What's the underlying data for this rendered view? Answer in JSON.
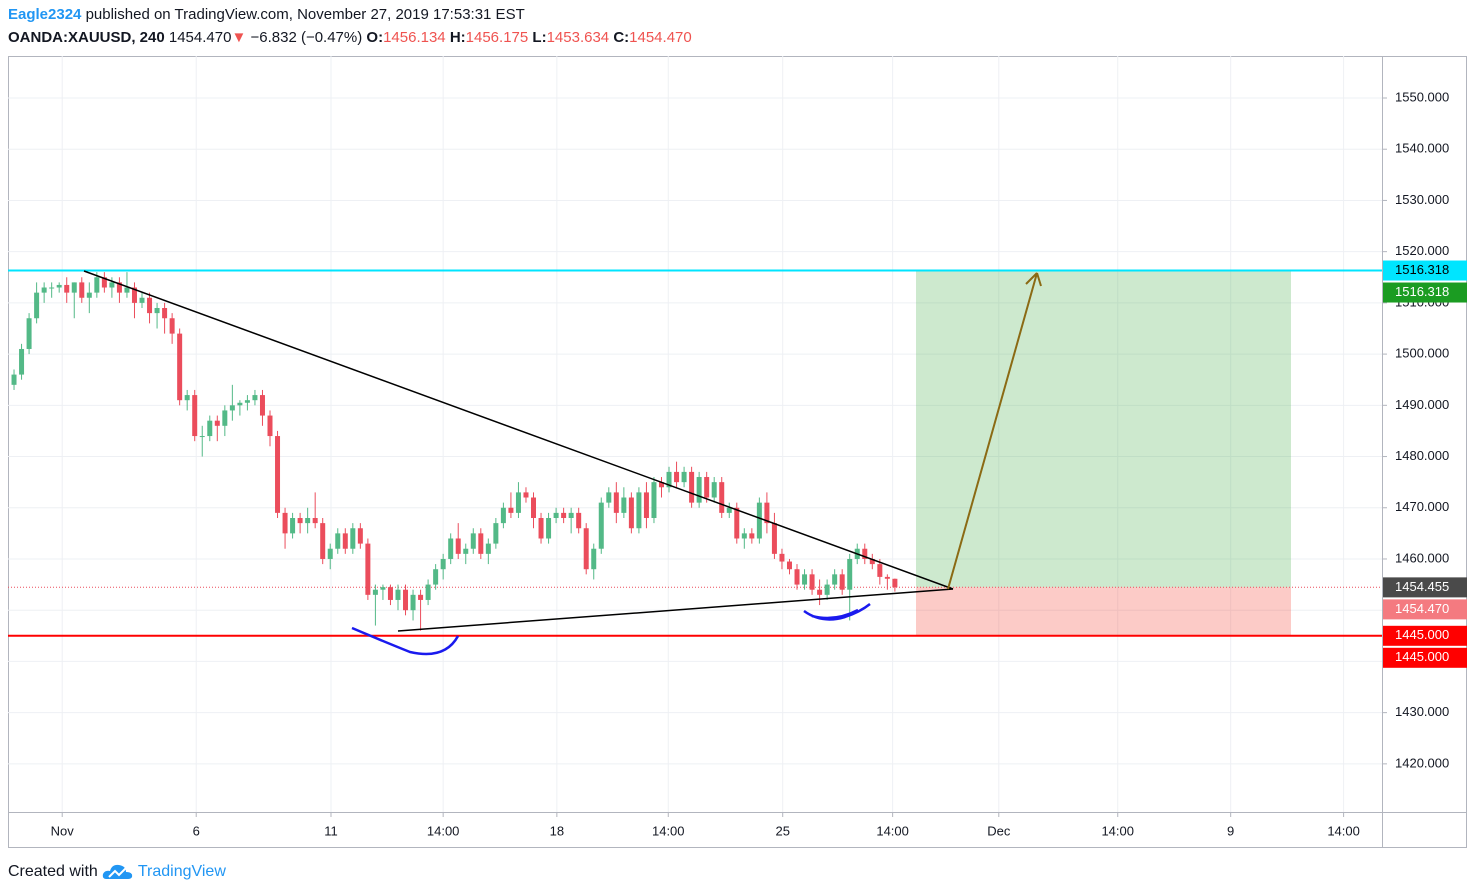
{
  "header": {
    "author": "Eagle2324",
    "published": "published on TradingView.com, November 27, 2019 17:53:31 EST",
    "symbol": "OANDA:XAUUSD, 240",
    "last": "1454.470",
    "arrow": "▼",
    "change": "−6.832 (−0.47%)",
    "o_label": "O:",
    "o": "1456.134",
    "h_label": "H:",
    "h": "1456.175",
    "l_label": "L:",
    "l": "1453.634",
    "c_label": "C:",
    "c": "1454.470"
  },
  "footer": {
    "text": "Created with",
    "brand": "TradingView"
  },
  "chart_data": {
    "type": "candlestick",
    "up_color": "#53b987",
    "down_color": "#eb4d5c",
    "grid": true,
    "xlim": [
      -0.8,
      181.7
    ],
    "xticks": [
      {
        "value": 6.4,
        "label": "Nov"
      },
      {
        "value": 24.2,
        "label": "6"
      },
      {
        "value": 42.1,
        "label": "11"
      },
      {
        "value": 57,
        "label": "14:00"
      },
      {
        "value": 72.1,
        "label": "18"
      },
      {
        "value": 86.9,
        "label": "14:00"
      },
      {
        "value": 102.1,
        "label": "25"
      },
      {
        "value": 116.7,
        "label": "14:00"
      },
      {
        "value": 130.8,
        "label": "Dec"
      },
      {
        "value": 146.6,
        "label": "14:00"
      },
      {
        "value": 161.6,
        "label": "9"
      },
      {
        "value": 176.6,
        "label": "14:00"
      }
    ],
    "ylim": [
      1410.6,
      1558.2
    ],
    "yticks": [
      {
        "value": 1420,
        "label": "1420.000"
      },
      {
        "value": 1430,
        "label": "1430.000"
      },
      {
        "value": 1440,
        "label": "1440.000"
      },
      {
        "value": 1450,
        "label": "1450.000"
      },
      {
        "value": 1460,
        "label": "1460.000"
      },
      {
        "value": 1470,
        "label": "1470.000"
      },
      {
        "value": 1480,
        "label": "1480.000"
      },
      {
        "value": 1490,
        "label": "1490.000"
      },
      {
        "value": 1500,
        "label": "1500.000"
      },
      {
        "value": 1510,
        "label": "1510.000"
      },
      {
        "value": 1520,
        "label": "1520.000"
      },
      {
        "value": 1530,
        "label": "1530.000"
      },
      {
        "value": 1540,
        "label": "1540.000"
      },
      {
        "value": 1550,
        "label": "1550.000"
      }
    ],
    "ohlc": [
      [
        1494,
        1497,
        1493,
        1496
      ],
      [
        1496,
        1502,
        1495,
        1501
      ],
      [
        1501,
        1508,
        1500,
        1507
      ],
      [
        1507,
        1514,
        1506,
        1512
      ],
      [
        1512,
        1514,
        1510,
        1513
      ],
      [
        1513,
        1514,
        1511,
        1513
      ],
      [
        1513,
        1514,
        1512,
        1513.5
      ],
      [
        1513.5,
        1515,
        1510,
        1512
      ],
      [
        1512,
        1514,
        1507,
        1514
      ],
      [
        1514,
        1515,
        1510,
        1511
      ],
      [
        1511,
        1514,
        1508,
        1512
      ],
      [
        1512,
        1516,
        1511,
        1515
      ],
      [
        1515,
        1516,
        1512,
        1513
      ],
      [
        1513,
        1515,
        1511,
        1514
      ],
      [
        1514,
        1515,
        1510,
        1512
      ],
      [
        1512,
        1516,
        1511,
        1513
      ],
      [
        1513,
        1514,
        1507,
        1510
      ],
      [
        1510,
        1512,
        1509,
        1511
      ],
      [
        1511,
        1512,
        1506,
        1508
      ],
      [
        1508,
        1510,
        1505,
        1509
      ],
      [
        1509,
        1510,
        1504,
        1507
      ],
      [
        1507,
        1508,
        1502,
        1504
      ],
      [
        1504,
        1505,
        1490,
        1491
      ],
      [
        1491,
        1493,
        1489,
        1492
      ],
      [
        1492,
        1493,
        1483,
        1484
      ],
      [
        1484,
        1486,
        1480,
        1484
      ],
      [
        1484,
        1488,
        1483,
        1487
      ],
      [
        1487,
        1488,
        1483,
        1486
      ],
      [
        1486,
        1490,
        1484,
        1489
      ],
      [
        1489,
        1494,
        1487,
        1490
      ],
      [
        1490,
        1491,
        1488,
        1490.5
      ],
      [
        1490.5,
        1492,
        1489,
        1491
      ],
      [
        1491,
        1493,
        1490,
        1492
      ],
      [
        1492,
        1493,
        1486,
        1488
      ],
      [
        1488,
        1489,
        1482,
        1484
      ],
      [
        1484,
        1485,
        1468,
        1469
      ],
      [
        1469,
        1470,
        1462,
        1465
      ],
      [
        1465,
        1469,
        1464,
        1468
      ],
      [
        1468,
        1469,
        1465,
        1467
      ],
      [
        1467,
        1470,
        1465,
        1468
      ],
      [
        1468,
        1473,
        1466,
        1467
      ],
      [
        1467,
        1468,
        1459,
        1460
      ],
      [
        1460,
        1463,
        1458,
        1462
      ],
      [
        1462,
        1466,
        1461,
        1465
      ],
      [
        1465,
        1466,
        1461,
        1462
      ],
      [
        1462,
        1467,
        1461,
        1466
      ],
      [
        1466,
        1467,
        1462,
        1463
      ],
      [
        1463,
        1464,
        1452,
        1453
      ],
      [
        1453,
        1455,
        1447,
        1454
      ],
      [
        1454,
        1455,
        1452,
        1454.5
      ],
      [
        1454.5,
        1455,
        1451,
        1452
      ],
      [
        1452,
        1455,
        1450,
        1454
      ],
      [
        1454,
        1455,
        1449,
        1450
      ],
      [
        1450,
        1454,
        1448,
        1453
      ],
      [
        1453,
        1454,
        1446,
        1452
      ],
      [
        1452,
        1456,
        1451,
        1455
      ],
      [
        1455,
        1459,
        1454,
        1458
      ],
      [
        1458,
        1461,
        1456,
        1460
      ],
      [
        1460,
        1465,
        1459,
        1464
      ],
      [
        1464,
        1467,
        1460,
        1461
      ],
      [
        1461,
        1463,
        1459,
        1462
      ],
      [
        1462,
        1466,
        1461,
        1465
      ],
      [
        1465,
        1466,
        1460,
        1461
      ],
      [
        1461,
        1464,
        1459,
        1463
      ],
      [
        1463,
        1468,
        1462,
        1467
      ],
      [
        1467,
        1471,
        1466,
        1470
      ],
      [
        1470,
        1473,
        1468,
        1469
      ],
      [
        1469,
        1475,
        1468,
        1473
      ],
      [
        1473,
        1474,
        1471,
        1472
      ],
      [
        1472,
        1473,
        1466,
        1468
      ],
      [
        1468,
        1469,
        1463,
        1464
      ],
      [
        1464,
        1469,
        1463,
        1468
      ],
      [
        1468,
        1470,
        1467,
        1469
      ],
      [
        1469,
        1470,
        1467,
        1468
      ],
      [
        1468,
        1470,
        1465,
        1469
      ],
      [
        1469,
        1470,
        1465,
        1466
      ],
      [
        1466,
        1467,
        1457,
        1458
      ],
      [
        1458,
        1463,
        1456,
        1462
      ],
      [
        1462,
        1472,
        1461,
        1471
      ],
      [
        1471,
        1474,
        1470,
        1473
      ],
      [
        1473,
        1475,
        1467,
        1469
      ],
      [
        1469,
        1474,
        1468,
        1472
      ],
      [
        1472,
        1473,
        1465,
        1466
      ],
      [
        1466,
        1474,
        1465,
        1473
      ],
      [
        1473,
        1475,
        1466,
        1468
      ],
      [
        1468,
        1476,
        1467,
        1475
      ],
      [
        1475,
        1476,
        1472,
        1474
      ],
      [
        1474,
        1478,
        1473,
        1477
      ],
      [
        1477,
        1479,
        1474,
        1475
      ],
      [
        1475,
        1478,
        1474,
        1477
      ],
      [
        1477,
        1478,
        1470,
        1471
      ],
      [
        1471,
        1477,
        1470,
        1476
      ],
      [
        1476,
        1477,
        1471,
        1472
      ],
      [
        1472,
        1476,
        1471,
        1475
      ],
      [
        1475,
        1476,
        1468,
        1469
      ],
      [
        1469,
        1471,
        1468,
        1470
      ],
      [
        1470,
        1471,
        1463,
        1464
      ],
      [
        1464,
        1466,
        1462,
        1465
      ],
      [
        1465,
        1466,
        1463,
        1464
      ],
      [
        1464,
        1472,
        1463,
        1471
      ],
      [
        1471,
        1473,
        1465,
        1467
      ],
      [
        1467,
        1469,
        1460,
        1461
      ],
      [
        1461,
        1462,
        1458,
        1459.5
      ],
      [
        1459.5,
        1460,
        1457,
        1458
      ],
      [
        1458,
        1459,
        1454,
        1455
      ],
      [
        1455,
        1458,
        1454,
        1457
      ],
      [
        1457,
        1458,
        1453,
        1454
      ],
      [
        1454,
        1456,
        1451,
        1453
      ],
      [
        1453,
        1456,
        1452,
        1455
      ],
      [
        1455,
        1458,
        1454,
        1457
      ],
      [
        1457,
        1458,
        1453,
        1454
      ],
      [
        1454,
        1461,
        1448,
        1460
      ],
      [
        1460,
        1463,
        1459,
        1462
      ],
      [
        1462,
        1463,
        1459,
        1460
      ],
      [
        1460,
        1461,
        1458,
        1459
      ],
      [
        1459,
        1460,
        1455,
        1456.5
      ],
      [
        1456.5,
        1457,
        1454,
        1456.134
      ],
      [
        1456.134,
        1456.175,
        1453.634,
        1454.47
      ]
    ],
    "levels": [
      {
        "value": 1516.318,
        "color": "#00e5ff"
      },
      {
        "value": 1445,
        "color": "#ff0000"
      }
    ],
    "position": {
      "entry": 1454.455,
      "target": 1516.318,
      "stop": 1445
    },
    "price_labels": [
      {
        "value": 1516.318,
        "label": "1516.318",
        "bg": "#00e5ff",
        "fg": "#000000"
      },
      {
        "value": 1516.318,
        "label": "1516.318",
        "bg": "#1b9c22",
        "fg": "#ffffff"
      },
      {
        "value": 1454.455,
        "label": "1454.455",
        "bg": "#4a4a4a",
        "fg": "#ffffff"
      },
      {
        "value": 1454.47,
        "label": "1454.470",
        "bg": "#f47a80",
        "fg": "#ffffff"
      },
      {
        "value": 1445,
        "label": "1445.000",
        "bg": "#ff0000",
        "fg": "#ffffff"
      },
      {
        "value": 1445,
        "label": "1445.000",
        "bg": "#ff0000",
        "fg": "#ffffff"
      }
    ]
  }
}
